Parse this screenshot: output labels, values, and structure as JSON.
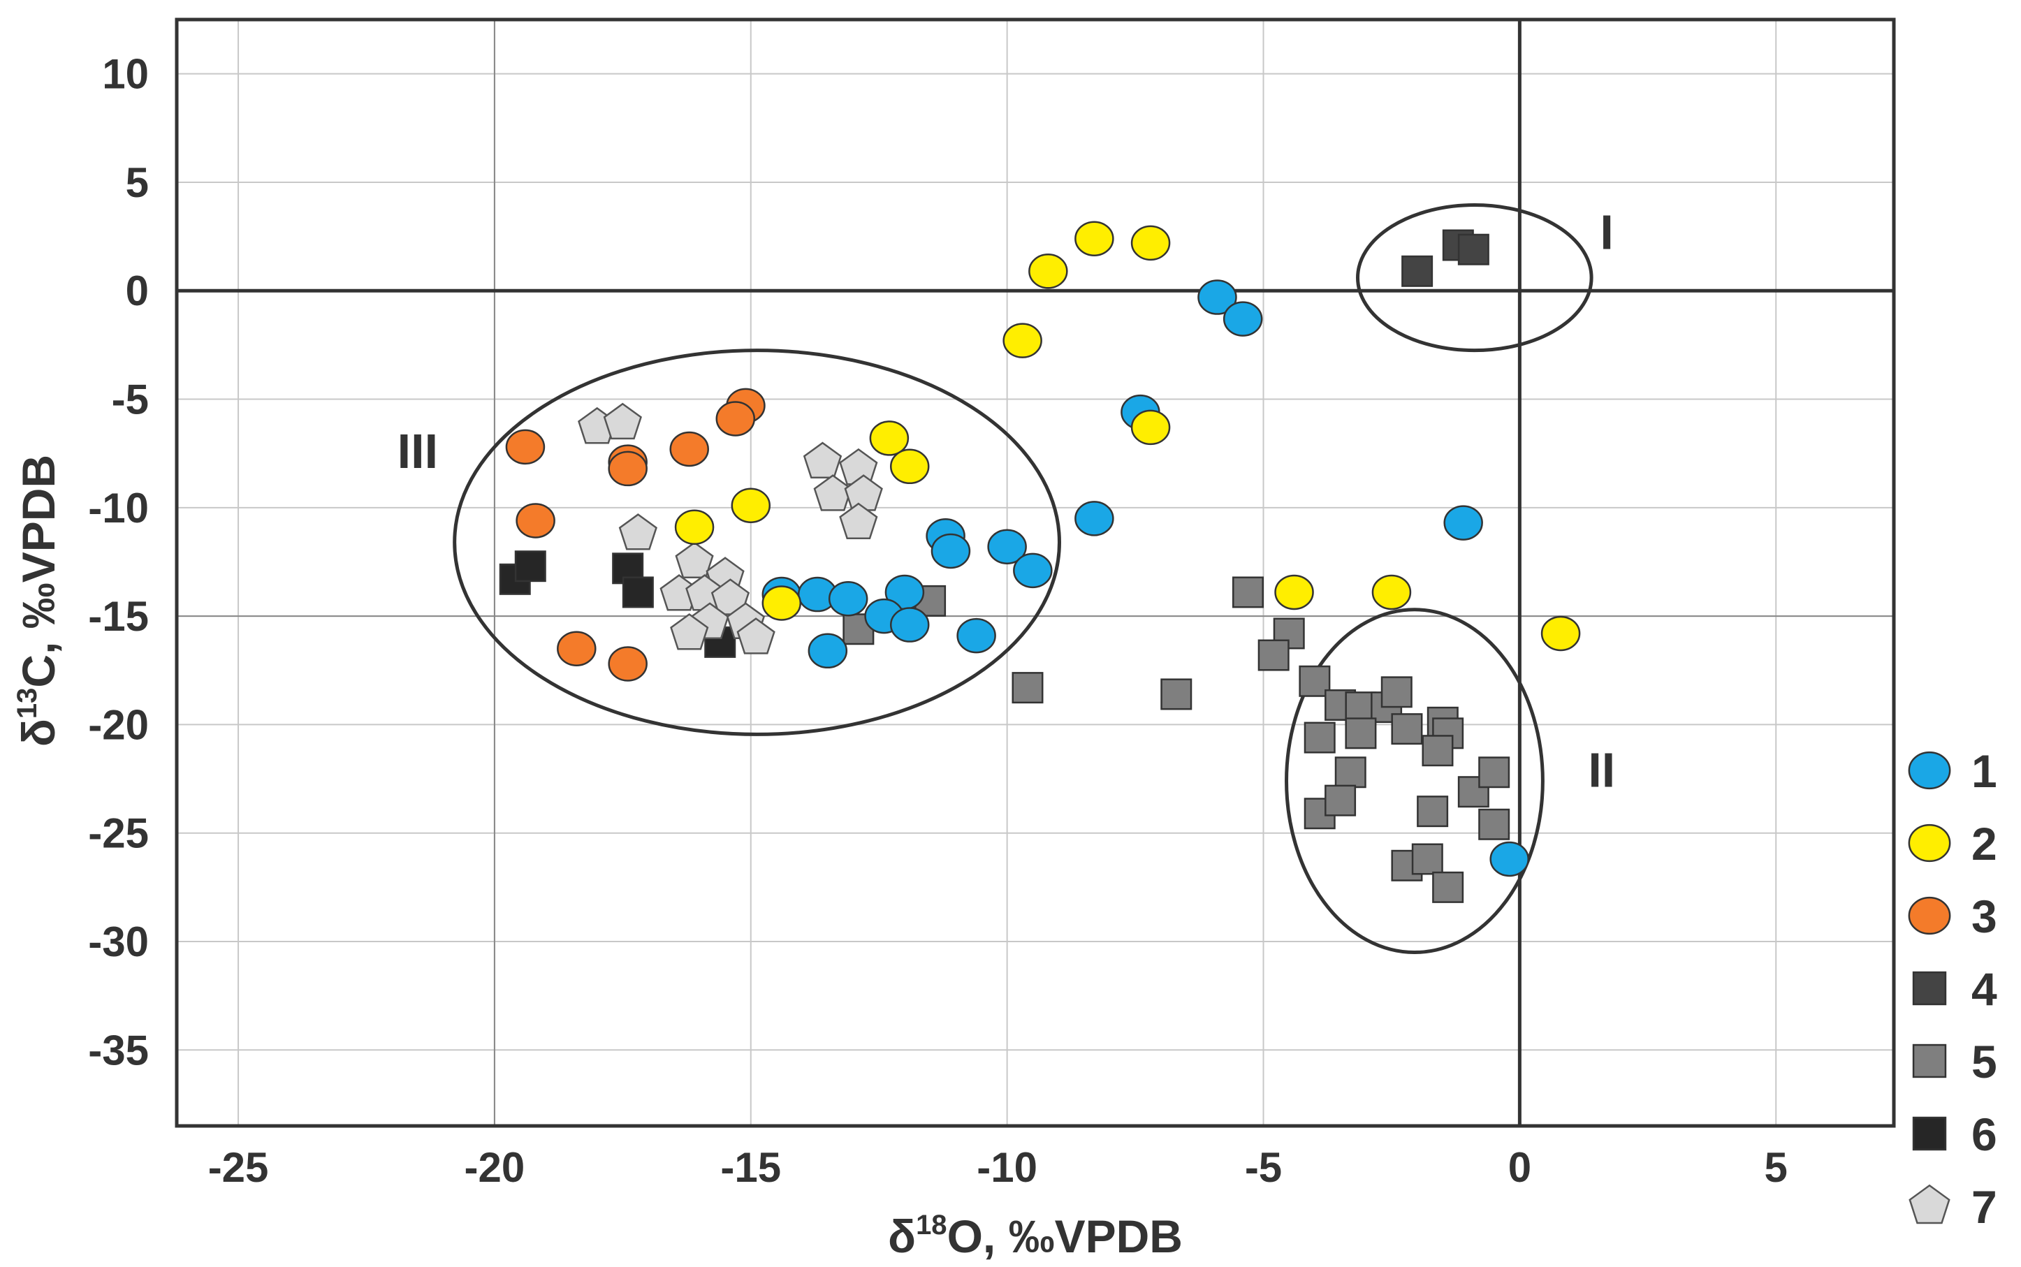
{
  "chart_data": {
    "type": "scatter",
    "xlabel": {
      "prefix": "δ",
      "sup": "18",
      "suffix": "O, ‰VPDB"
    },
    "ylabel": {
      "prefix": "δ",
      "sup": "13",
      "suffix": "C, ‰VPDB"
    },
    "xlim": [
      -26.2,
      7.3
    ],
    "ylim": [
      -38.5,
      12.5
    ],
    "xticks": [
      -25,
      -20,
      -15,
      -10,
      -5,
      0,
      5
    ],
    "yticks": [
      10,
      5,
      0,
      -5,
      -10,
      -15,
      -20,
      -25,
      -30,
      -35
    ],
    "grid": true,
    "legend_position": "right",
    "zero_lines": true,
    "series": [
      {
        "name": "1",
        "marker": "circle",
        "color": "#1aa7e6",
        "points": [
          [
            -5.9,
            -0.3
          ],
          [
            -5.4,
            -1.3
          ],
          [
            -7.4,
            -5.6
          ],
          [
            -8.3,
            -10.5
          ],
          [
            -1.1,
            -10.7
          ],
          [
            -11.2,
            -11.3
          ],
          [
            -11.1,
            -12
          ],
          [
            -10,
            -11.8
          ],
          [
            -9.5,
            -12.9
          ],
          [
            -14.4,
            -14
          ],
          [
            -13.7,
            -14
          ],
          [
            -13.1,
            -14.2
          ],
          [
            -12,
            -13.9
          ],
          [
            -12.4,
            -15
          ],
          [
            -11.9,
            -15.4
          ],
          [
            -10.6,
            -15.9
          ],
          [
            -13.5,
            -16.6
          ],
          [
            -0.2,
            -26.2
          ]
        ]
      },
      {
        "name": "2",
        "marker": "circle",
        "color": "#ffee00",
        "points": [
          [
            -8.3,
            2.4
          ],
          [
            -7.2,
            2.2
          ],
          [
            -9.2,
            0.9
          ],
          [
            -9.7,
            -2.3
          ],
          [
            -7.2,
            -6.3
          ],
          [
            -12.3,
            -6.8
          ],
          [
            -11.9,
            -8.1
          ],
          [
            -15,
            -9.9
          ],
          [
            -16.1,
            -10.9
          ],
          [
            -14.4,
            -14.4
          ],
          [
            -4.4,
            -13.9
          ],
          [
            -2.5,
            -13.9
          ],
          [
            0.8,
            -15.8
          ]
        ]
      },
      {
        "name": "3",
        "marker": "circle",
        "color": "#f47b2a",
        "points": [
          [
            -15.1,
            -5.3
          ],
          [
            -15.3,
            -5.9
          ],
          [
            -19.4,
            -7.2
          ],
          [
            -16.2,
            -7.3
          ],
          [
            -17.4,
            -7.9
          ],
          [
            -17.4,
            -8.2
          ],
          [
            -19.2,
            -10.6
          ],
          [
            -18.4,
            -16.5
          ],
          [
            -17.4,
            -17.2
          ]
        ]
      },
      {
        "name": "4",
        "marker": "square",
        "color": "#444444",
        "points": [
          [
            -1.2,
            2.1
          ],
          [
            -0.9,
            1.9
          ],
          [
            -2,
            0.9
          ]
        ]
      },
      {
        "name": "5",
        "marker": "square",
        "color": "#7f7f7f",
        "points": [
          [
            -5.3,
            -13.9
          ],
          [
            -12.9,
            -15.6
          ],
          [
            -11.5,
            -14.3
          ],
          [
            -9.6,
            -18.3
          ],
          [
            -6.7,
            -18.6
          ],
          [
            -4.5,
            -15.8
          ],
          [
            -4.8,
            -16.8
          ],
          [
            -4,
            -18
          ],
          [
            -3.5,
            -19.1
          ],
          [
            -3.1,
            -19.2
          ],
          [
            -2.6,
            -19.2
          ],
          [
            -2.4,
            -18.5
          ],
          [
            -3.1,
            -20.4
          ],
          [
            -2.2,
            -20.2
          ],
          [
            -1.5,
            -19.9
          ],
          [
            -1.4,
            -20.4
          ],
          [
            -1.6,
            -21.2
          ],
          [
            -3.9,
            -20.6
          ],
          [
            -3.3,
            -22.2
          ],
          [
            -3.9,
            -24.1
          ],
          [
            -3.5,
            -23.5
          ],
          [
            -1.7,
            -24
          ],
          [
            -0.9,
            -23.1
          ],
          [
            -0.5,
            -22.2
          ],
          [
            -0.5,
            -24.6
          ],
          [
            -2.2,
            -26.5
          ],
          [
            -1.8,
            -26.2
          ],
          [
            -1.4,
            -27.5
          ]
        ]
      },
      {
        "name": "6",
        "marker": "square",
        "color": "#262626",
        "points": [
          [
            -19.6,
            -13.3
          ],
          [
            -19.3,
            -12.7
          ],
          [
            -17.4,
            -12.8
          ],
          [
            -17.2,
            -13.9
          ],
          [
            -15.6,
            -16.2
          ]
        ]
      },
      {
        "name": "7",
        "marker": "pentagon",
        "color": "#d9d9d9",
        "points": [
          [
            -18,
            -6.3
          ],
          [
            -17.5,
            -6.1
          ],
          [
            -13.6,
            -7.9
          ],
          [
            -12.9,
            -8.2
          ],
          [
            -13.4,
            -9.4
          ],
          [
            -12.8,
            -9.4
          ],
          [
            -12.9,
            -10.7
          ],
          [
            -17.2,
            -11.2
          ],
          [
            -16.1,
            -12.5
          ],
          [
            -15.5,
            -13.2
          ],
          [
            -16.4,
            -14
          ],
          [
            -15.9,
            -14
          ],
          [
            -15.4,
            -14.2
          ],
          [
            -15.8,
            -15.3
          ],
          [
            -15.1,
            -15.3
          ],
          [
            -16.2,
            -15.8
          ],
          [
            -14.9,
            -16
          ]
        ]
      }
    ],
    "annotations": [
      {
        "label": "I",
        "x": 1.7,
        "y": 2.7
      },
      {
        "label": "II",
        "x": 1.6,
        "y": -22.1
      },
      {
        "label": "III",
        "x": -21.5,
        "y": -7.4
      }
    ],
    "ellipses": [
      {
        "cx": -0.88,
        "cy": 0.6,
        "rx": 2.28,
        "ry": 3.35
      },
      {
        "cx": -2.05,
        "cy": -22.6,
        "rx": 2.5,
        "ry": 7.9
      },
      {
        "cx": -14.88,
        "cy": -11.6,
        "rx": 5.9,
        "ry": 8.85
      }
    ]
  }
}
